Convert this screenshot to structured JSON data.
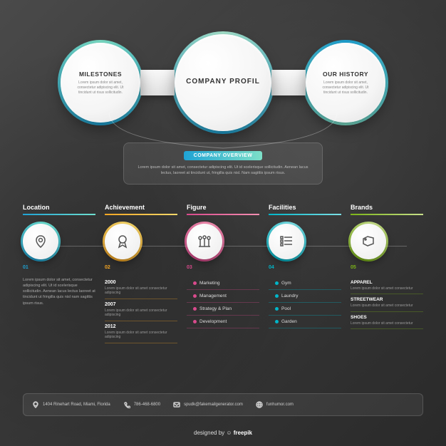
{
  "top": {
    "left": {
      "title": "MILESTONES",
      "body": "Lorem ipsum dolor sit amet, consectetur adipiscing elit. Ut tincidunt ut risus sollicitudin."
    },
    "center": {
      "title": "COMPANY PROFIL"
    },
    "right": {
      "title": "OUR HISTORY",
      "body": "Lorem ipsum dolor sit amet, consectetur adipiscing elit. Ut tincidunt ut risus sollicitudin."
    }
  },
  "overview": {
    "tab": "COMPANY OVERVIEW",
    "body": "Lorem ipsum dolor sit amet, consectetur adipiscing elit. Ut id scelerisque sollicitudin. Aenean lacus lectus, laoreet at tincidunt ut, fringilla quis nisl. Nam sagittis ipsum risus."
  },
  "items": [
    {
      "title": "Location",
      "num": "01",
      "c1": "#1fa3d4",
      "c2": "#6fe0d0",
      "body": "Lorem ipsum dolor sit amet, consectetur adipiscing elit. Ut id scelerisque sollicitudin. Aenean lacus lectus laoreet at tincidunt ut fringilla quis nisl nam sagittis ipsum risus.",
      "type": "text"
    },
    {
      "title": "Achievement",
      "num": "02",
      "c1": "#f5a623",
      "c2": "#f7d86a",
      "type": "years",
      "years": [
        {
          "y": "2000",
          "d": "Lorem ipsum dolor sit amet consectetur adipiscing"
        },
        {
          "y": "2007",
          "d": "Lorem ipsum dolor sit amet consectetur adipiscing"
        },
        {
          "y": "2012",
          "d": "Lorem ipsum dolor sit amet consectetur adipiscing"
        }
      ]
    },
    {
      "title": "Figure",
      "num": "03",
      "c1": "#d94a8c",
      "c2": "#f48fb1",
      "type": "list",
      "list": [
        "Marketing",
        "Management",
        "Strategy & Plan",
        "Development"
      ]
    },
    {
      "title": "Facilities",
      "num": "04",
      "c1": "#00b6c9",
      "c2": "#7de0e6",
      "type": "list",
      "list": [
        "Gym",
        "Laundry",
        "Pool",
        "Garden"
      ]
    },
    {
      "title": "Brands",
      "num": "05",
      "c1": "#7cb518",
      "c2": "#c8e08a",
      "type": "brands",
      "list": [
        {
          "n": "APPAREL",
          "d": "Lorem ipsum dolor sit amet consectetur"
        },
        {
          "n": "STREETWEAR",
          "d": "Lorem ipsum dolor sit amet consectetur"
        },
        {
          "n": "SHOES",
          "d": "Lorem ipsum dolor sit amet consectetur"
        }
      ]
    }
  ],
  "footer": {
    "address": "1404 Rinehart Road, Miami, Florida",
    "phone": "786-468-6800",
    "email": "spudk@fakemailgenerator.com",
    "web": "funhumor.com"
  },
  "credit": {
    "pre": "designed by ",
    "brand": "freepik"
  },
  "colors": {
    "bgDark": "#3a3a3a",
    "text": "#ffffff",
    "muted": "#aaaaaa"
  }
}
